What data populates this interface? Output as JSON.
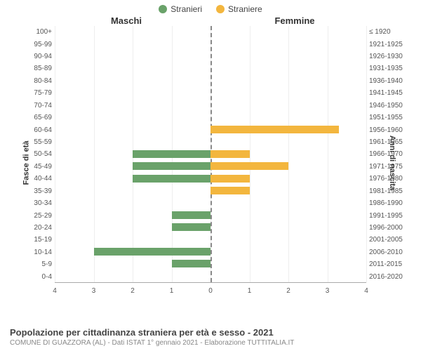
{
  "legend": {
    "male": {
      "label": "Stranieri",
      "color": "#6aa26a"
    },
    "female": {
      "label": "Straniere",
      "color": "#f3b63e"
    }
  },
  "headers": {
    "left": "Maschi",
    "right": "Femmine"
  },
  "axis_left": {
    "title": "Fasce di età"
  },
  "axis_right": {
    "title": "Anni di nascita"
  },
  "xlim": 4,
  "xticks": [
    4,
    3,
    2,
    1,
    0,
    1,
    2,
    3,
    4
  ],
  "grid_color": "#eeeeee",
  "center_line_color": "#888888",
  "rows": [
    {
      "age": "100+",
      "birth": "≤ 1920",
      "m": 0,
      "f": 0
    },
    {
      "age": "95-99",
      "birth": "1921-1925",
      "m": 0,
      "f": 0
    },
    {
      "age": "90-94",
      "birth": "1926-1930",
      "m": 0,
      "f": 0
    },
    {
      "age": "85-89",
      "birth": "1931-1935",
      "m": 0,
      "f": 0
    },
    {
      "age": "80-84",
      "birth": "1936-1940",
      "m": 0,
      "f": 0
    },
    {
      "age": "75-79",
      "birth": "1941-1945",
      "m": 0,
      "f": 0
    },
    {
      "age": "70-74",
      "birth": "1946-1950",
      "m": 0,
      "f": 0
    },
    {
      "age": "65-69",
      "birth": "1951-1955",
      "m": 0,
      "f": 0
    },
    {
      "age": "60-64",
      "birth": "1956-1960",
      "m": 0,
      "f": 3.3
    },
    {
      "age": "55-59",
      "birth": "1961-1965",
      "m": 0,
      "f": 0
    },
    {
      "age": "50-54",
      "birth": "1966-1970",
      "m": 2.0,
      "f": 1.0
    },
    {
      "age": "45-49",
      "birth": "1971-1975",
      "m": 2.0,
      "f": 2.0
    },
    {
      "age": "40-44",
      "birth": "1976-1980",
      "m": 2.0,
      "f": 1.0
    },
    {
      "age": "35-39",
      "birth": "1981-1985",
      "m": 0,
      "f": 1.0
    },
    {
      "age": "30-34",
      "birth": "1986-1990",
      "m": 0,
      "f": 0
    },
    {
      "age": "25-29",
      "birth": "1991-1995",
      "m": 1.0,
      "f": 0
    },
    {
      "age": "20-24",
      "birth": "1996-2000",
      "m": 1.0,
      "f": 0
    },
    {
      "age": "15-19",
      "birth": "2001-2005",
      "m": 0,
      "f": 0
    },
    {
      "age": "10-14",
      "birth": "2006-2010",
      "m": 3.0,
      "f": 0
    },
    {
      "age": "5-9",
      "birth": "2011-2015",
      "m": 1.0,
      "f": 0
    },
    {
      "age": "0-4",
      "birth": "2016-2020",
      "m": 0,
      "f": 0
    }
  ],
  "footer": {
    "title": "Popolazione per cittadinanza straniera per età e sesso - 2021",
    "subtitle": "COMUNE DI GUAZZORA (AL) - Dati ISTAT 1° gennaio 2021 - Elaborazione TUTTITALIA.IT"
  }
}
